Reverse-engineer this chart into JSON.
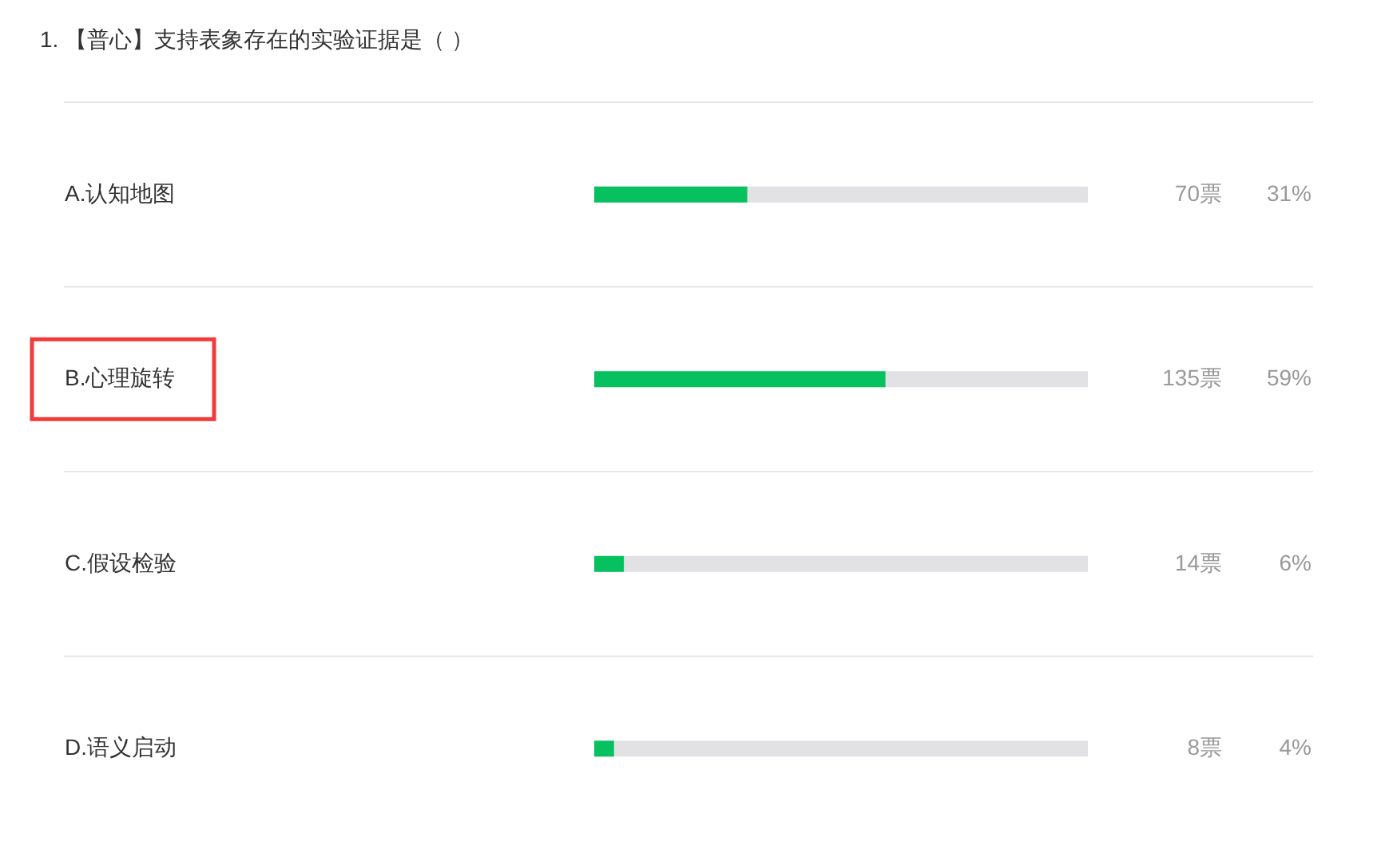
{
  "chart_data": {
    "type": "bar",
    "orientation": "horizontal",
    "title": "1. 【普心】支持表象存在的实验证据是（ ）",
    "categories": [
      "A.认知地图",
      "B.心理旋转",
      "C.假设检验",
      "D.语义启动"
    ],
    "values": [
      31,
      59,
      6,
      4
    ],
    "color": "#07c160",
    "value_labels": [
      "31%",
      "59%",
      "6%",
      "4%"
    ],
    "annotations": [
      "70票",
      "135票",
      "14票",
      "8票"
    ],
    "xlim": [
      0,
      100
    ],
    "tick_labels": "y",
    "grid": "y"
  }
}
